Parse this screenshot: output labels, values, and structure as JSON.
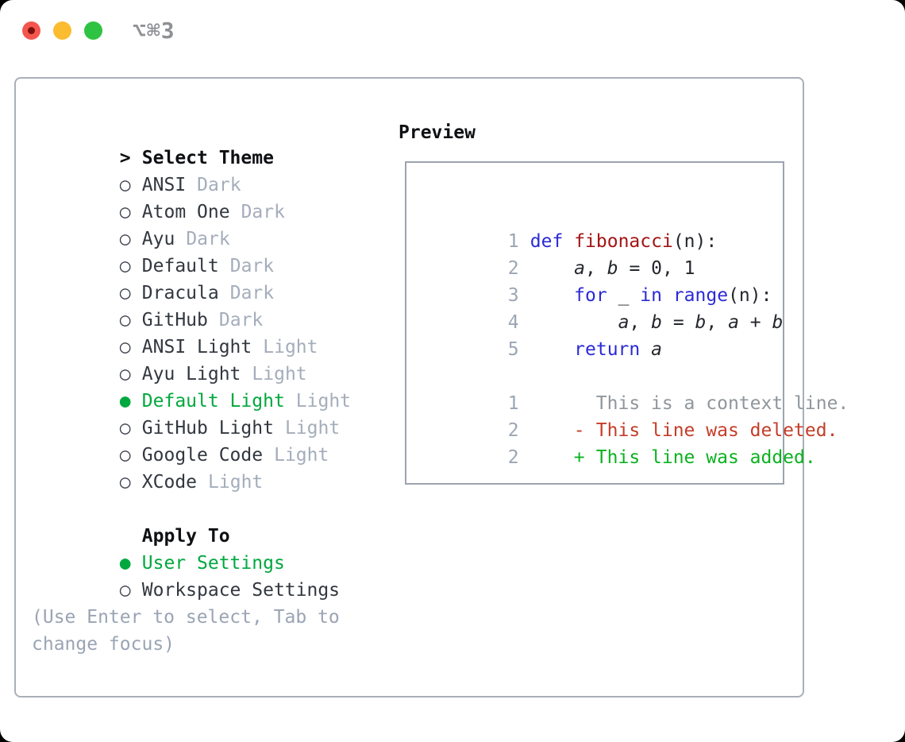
{
  "titlebar": {
    "shortcut": "⌥⌘3"
  },
  "icons": {
    "radio_selected_glyph": "●",
    "radio_unselected_glyph": "○",
    "cursor_glyph": ">"
  },
  "colors": {
    "selection_green": "#00a83e",
    "added_green": "#0cb220",
    "deleted_red": "#c43d28",
    "keyword_blue": "#2a2ad6",
    "function_red": "#a31515",
    "muted_gray": "#a4adbb",
    "traffic_red": "#f4564e",
    "traffic_yellow": "#fcbc30",
    "traffic_green": "#2ec342"
  },
  "theme_list": {
    "header": "Select Theme",
    "items": [
      {
        "label": "ANSI",
        "tag": "Dark",
        "selected": false
      },
      {
        "label": "Atom One",
        "tag": "Dark",
        "selected": false
      },
      {
        "label": "Ayu",
        "tag": "Dark",
        "selected": false
      },
      {
        "label": "Default",
        "tag": "Dark",
        "selected": false
      },
      {
        "label": "Dracula",
        "tag": "Dark",
        "selected": false
      },
      {
        "label": "GitHub",
        "tag": "Dark",
        "selected": false
      },
      {
        "label": "ANSI Light",
        "tag": "Light",
        "selected": false
      },
      {
        "label": "Ayu Light",
        "tag": "Light",
        "selected": false
      },
      {
        "label": "Default Light",
        "tag": "Light",
        "selected": true
      },
      {
        "label": "GitHub Light",
        "tag": "Light",
        "selected": false
      },
      {
        "label": "Google Code",
        "tag": "Light",
        "selected": false
      },
      {
        "label": "XCode",
        "tag": "Light",
        "selected": false
      }
    ]
  },
  "apply_to": {
    "header": "Apply To",
    "options": [
      {
        "label": "User Settings",
        "selected": true
      },
      {
        "label": "Workspace Settings",
        "selected": false
      }
    ]
  },
  "help": {
    "line1": "(Use Enter to select, Tab to",
    "line2": "change focus)"
  },
  "preview": {
    "header": "Preview",
    "code_lines": [
      {
        "num": "1",
        "tokens": [
          {
            "text": "def",
            "style": "kw"
          },
          {
            "text": " ",
            "style": "plain"
          },
          {
            "text": "fibonacci",
            "style": "fn"
          },
          {
            "text": "(n):",
            "style": "plain"
          }
        ]
      },
      {
        "num": "2",
        "tokens": [
          {
            "text": "    ",
            "style": "plain"
          },
          {
            "text": "a",
            "style": "var"
          },
          {
            "text": ", ",
            "style": "plain"
          },
          {
            "text": "b",
            "style": "var"
          },
          {
            "text": " = 0, 1",
            "style": "plain"
          }
        ]
      },
      {
        "num": "3",
        "tokens": [
          {
            "text": "    ",
            "style": "plain"
          },
          {
            "text": "for",
            "style": "kw"
          },
          {
            "text": " _ ",
            "style": "plain"
          },
          {
            "text": "in",
            "style": "kw"
          },
          {
            "text": " ",
            "style": "plain"
          },
          {
            "text": "range",
            "style": "kw"
          },
          {
            "text": "(n):",
            "style": "plain"
          }
        ]
      },
      {
        "num": "4",
        "tokens": [
          {
            "text": "        ",
            "style": "plain"
          },
          {
            "text": "a",
            "style": "var"
          },
          {
            "text": ", ",
            "style": "plain"
          },
          {
            "text": "b",
            "style": "var"
          },
          {
            "text": " = ",
            "style": "plain"
          },
          {
            "text": "b",
            "style": "var"
          },
          {
            "text": ", ",
            "style": "plain"
          },
          {
            "text": "a",
            "style": "var"
          },
          {
            "text": " + ",
            "style": "plain"
          },
          {
            "text": "b",
            "style": "var"
          }
        ]
      },
      {
        "num": "5",
        "tokens": [
          {
            "text": "    ",
            "style": "plain"
          },
          {
            "text": "return",
            "style": "kw"
          },
          {
            "text": " ",
            "style": "plain"
          },
          {
            "text": "a",
            "style": "var"
          }
        ]
      }
    ],
    "diff_lines": [
      {
        "num": "1",
        "marker": " ",
        "text": "This is a context line.",
        "type": "context"
      },
      {
        "num": "2",
        "marker": "-",
        "text": "This line was deleted.",
        "type": "deleted"
      },
      {
        "num": "2",
        "marker": "+",
        "text": "This line was added.",
        "type": "added"
      }
    ]
  }
}
